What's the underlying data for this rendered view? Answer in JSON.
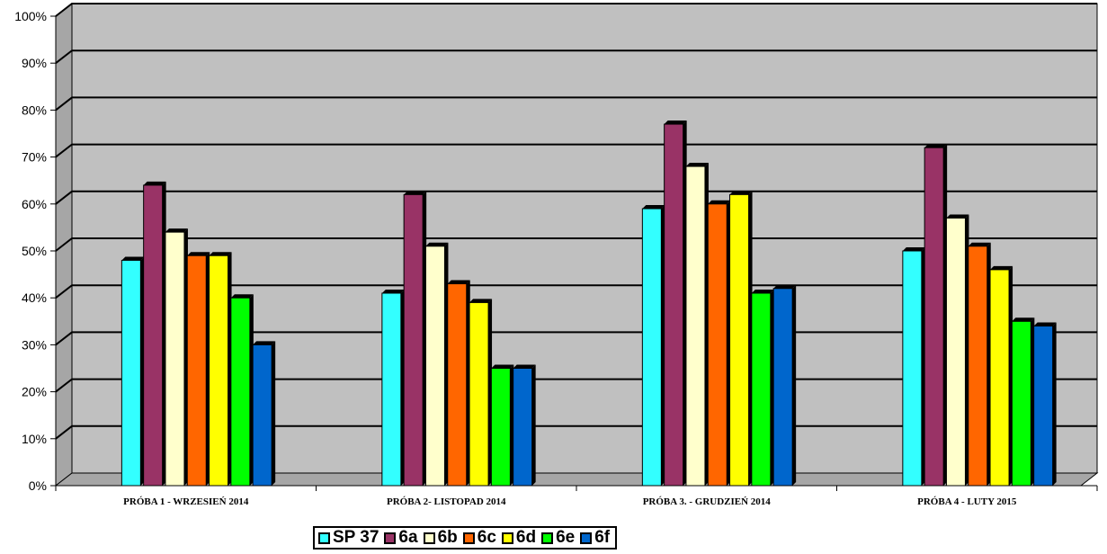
{
  "chart_data": {
    "type": "bar",
    "categories": [
      "PRÓBA 1 - WRZESIEŃ 2014",
      "PRÓBA 2- LISTOPAD 2014",
      "PRÓBA 3. - GRUDZIEŃ 2014",
      "PRÓBA 4 - LUTY 2015"
    ],
    "series": [
      {
        "name": "SP 37",
        "color": "#33ffff",
        "values": [
          48,
          41,
          59,
          50
        ]
      },
      {
        "name": "6a",
        "color": "#993366",
        "values": [
          64,
          62,
          77,
          72
        ]
      },
      {
        "name": "6b",
        "color": "#ffffcc",
        "values": [
          54,
          51,
          68,
          57
        ]
      },
      {
        "name": "6c",
        "color": "#ff6600",
        "values": [
          49,
          43,
          60,
          51
        ]
      },
      {
        "name": "6d",
        "color": "#ffff00",
        "values": [
          49,
          39,
          62,
          46
        ]
      },
      {
        "name": "6e",
        "color": "#00ff00",
        "values": [
          40,
          25,
          41,
          35
        ]
      },
      {
        "name": "6f",
        "color": "#0066cc",
        "values": [
          30,
          25,
          42,
          34
        ]
      }
    ],
    "y_ticks": [
      "0%",
      "10%",
      "20%",
      "30%",
      "40%",
      "50%",
      "60%",
      "70%",
      "80%",
      "90%",
      "100%"
    ],
    "ylim": [
      0,
      100
    ],
    "grid": true,
    "legend_position": "bottom",
    "plot_background": "#c0c0c0"
  }
}
